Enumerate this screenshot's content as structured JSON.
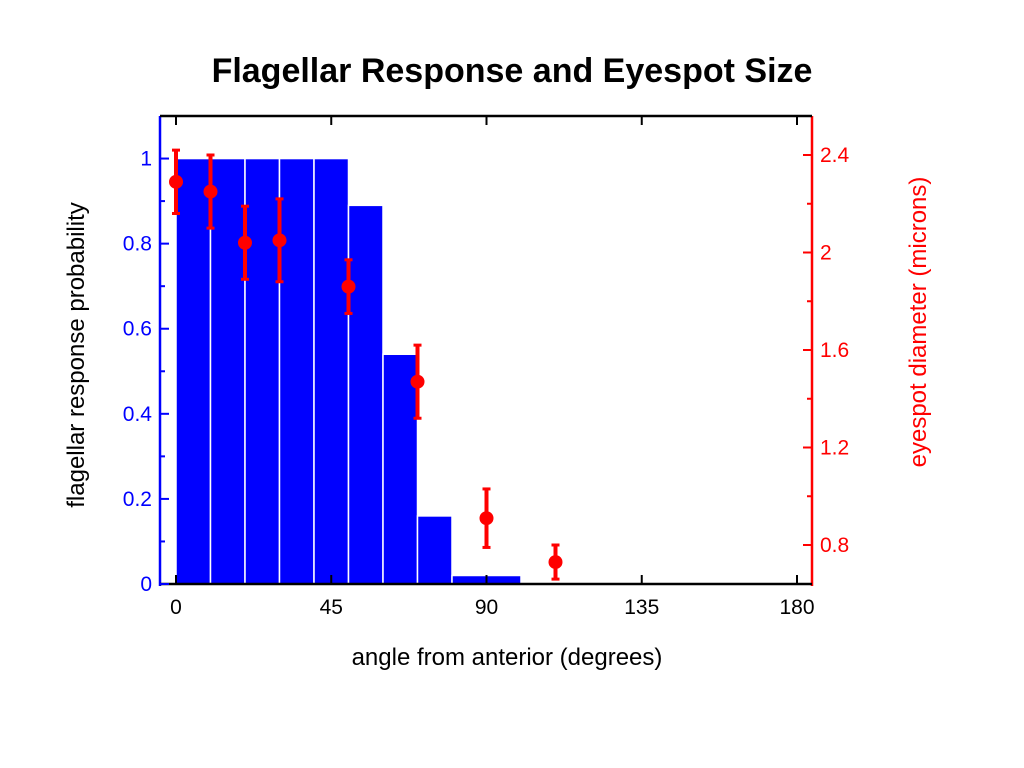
{
  "chart_data": {
    "type": "bar",
    "title": "Flagellar Response and Eyespot Size",
    "xlabel": "angle from anterior (degrees)",
    "ylabel": "flagellar response probability",
    "ylabel_right": "eyespot diameter (microns)",
    "xlim": [
      -2,
      182
    ],
    "ylim": [
      0,
      1.1
    ],
    "ylim_right": [
      0.64,
      2.56
    ],
    "x_ticks": [
      0,
      45,
      90,
      135,
      180
    ],
    "y_ticks": [
      0,
      0.2,
      0.4,
      0.6,
      0.8,
      1
    ],
    "y_ticks_right": [
      0.8,
      1.2,
      1.6,
      2,
      2.4
    ],
    "grid": false,
    "colors": {
      "bars": "#0000ff",
      "left_axis": "#0000ff",
      "right_axis": "#ff0000",
      "markers": "#ff0000"
    },
    "bars": {
      "name": "flagellar response probability",
      "bin_edges": [
        0,
        10,
        20,
        30,
        40,
        50,
        60,
        70,
        80,
        90,
        100
      ],
      "values": [
        1.0,
        1.0,
        1.0,
        1.0,
        1.0,
        0.89,
        0.54,
        0.16,
        0.02,
        0.02
      ]
    },
    "points": {
      "name": "eyespot diameter",
      "x": [
        0,
        10,
        20,
        30,
        50,
        70,
        90,
        110
      ],
      "y": [
        2.29,
        2.25,
        2.04,
        2.05,
        1.86,
        1.47,
        0.91,
        0.73
      ],
      "err": [
        0.13,
        0.15,
        0.15,
        0.17,
        0.11,
        0.15,
        0.12,
        0.07
      ]
    }
  }
}
